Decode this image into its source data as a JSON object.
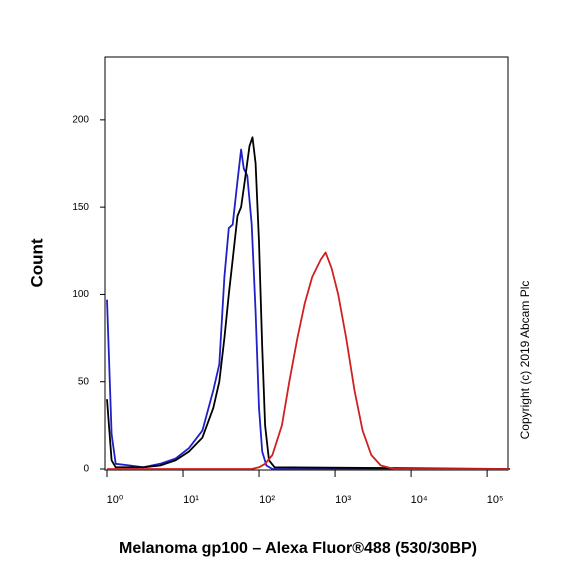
{
  "chart_data": {
    "type": "line",
    "xscale": "log",
    "xlabel": "Melanoma gp100 – Alexa Fluor®488 (530/30BP)",
    "ylabel": "Count",
    "annotation": "Copyright (c) 2019 Abcam Plc",
    "xlim": [
      1,
      200000
    ],
    "ylim": [
      0,
      236
    ],
    "xticks": [
      {
        "value": 1,
        "label": "10⁰"
      },
      {
        "value": 10,
        "label": "10¹"
      },
      {
        "value": 100,
        "label": "10²"
      },
      {
        "value": 1000,
        "label": "10³"
      },
      {
        "value": 10000,
        "label": "10⁴"
      },
      {
        "value": 100000,
        "label": "10⁵"
      }
    ],
    "yticks": [
      0,
      50,
      100,
      150,
      200
    ],
    "series": [
      {
        "color": "#2020c8",
        "x": [
          1,
          1.15,
          1.3,
          2,
          3,
          5,
          8,
          12,
          18,
          25,
          30,
          35,
          40,
          45,
          52,
          58,
          63,
          70,
          80,
          90,
          100,
          110,
          125,
          150,
          200000
        ],
        "values": [
          97,
          20,
          3,
          2,
          1,
          3,
          6,
          12,
          22,
          45,
          60,
          110,
          138,
          140,
          165,
          183,
          172,
          168,
          140,
          90,
          35,
          10,
          2,
          0,
          0
        ]
      },
      {
        "color": "#000000",
        "x": [
          1,
          1.15,
          1.3,
          3,
          5,
          8,
          12,
          18,
          25,
          30,
          35,
          40,
          45,
          52,
          58,
          65,
          75,
          82,
          90,
          100,
          110,
          120,
          135,
          160,
          200000
        ],
        "values": [
          40,
          5,
          1,
          1,
          2,
          5,
          10,
          18,
          35,
          50,
          75,
          100,
          120,
          145,
          150,
          165,
          185,
          190,
          175,
          130,
          70,
          25,
          5,
          1,
          0
        ]
      },
      {
        "color": "#d02020",
        "x": [
          1,
          80,
          100,
          120,
          150,
          200,
          250,
          320,
          400,
          500,
          650,
          750,
          900,
          1100,
          1400,
          1800,
          2300,
          3000,
          4000,
          6000,
          200000
        ],
        "values": [
          0,
          0,
          1,
          3,
          8,
          25,
          50,
          75,
          95,
          110,
          120,
          124,
          115,
          100,
          75,
          45,
          22,
          8,
          2,
          0,
          0
        ]
      }
    ]
  }
}
